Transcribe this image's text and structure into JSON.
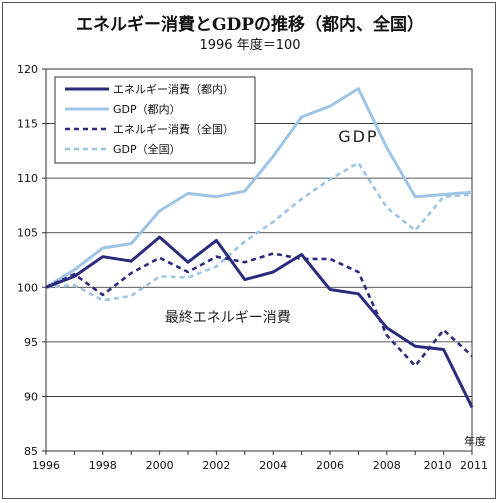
{
  "chart_data": {
    "type": "line",
    "title": "エネルギー消費とGDPの推移（都内、全国）",
    "subtitle": "1996 年度＝100",
    "xlabel": "年度",
    "ylabel": "",
    "ylim": [
      85,
      120
    ],
    "yticks": [
      85,
      90,
      95,
      100,
      105,
      110,
      115,
      120
    ],
    "x": [
      1996,
      1997,
      1998,
      1999,
      2000,
      2001,
      2002,
      2003,
      2004,
      2005,
      2006,
      2007,
      2008,
      2009,
      2010,
      2011
    ],
    "xtick_labels": [
      "1996",
      "1998",
      "2000",
      "2002",
      "2004",
      "2006",
      "2008",
      "2010",
      "2011"
    ],
    "xtick_values": [
      1996,
      1998,
      2000,
      2002,
      2004,
      2006,
      2008,
      2010,
      2011
    ],
    "legend_position": "top-left",
    "grid": "horizontal",
    "series": [
      {
        "name": "エネルギー消費（都内）",
        "color": "#2b2b7e",
        "dash": "solid",
        "values": [
          100,
          101,
          102.8,
          102.4,
          104.6,
          102.3,
          104.3,
          100.7,
          101.4,
          103.0,
          99.8,
          99.4,
          96.3,
          94.6,
          94.3,
          89.0
        ]
      },
      {
        "name": "GDP（都内）",
        "color": "#9ec5e6",
        "dash": "solid",
        "values": [
          100,
          101.6,
          103.6,
          104.0,
          107.0,
          108.6,
          108.3,
          108.8,
          112.0,
          115.6,
          116.6,
          118.2,
          112.8,
          108.3,
          108.5,
          108.7
        ]
      },
      {
        "name": "エネルギー消費（全国）",
        "color": "#2b2b7e",
        "dash": "dashed",
        "values": [
          100,
          101.2,
          99.3,
          101.3,
          102.7,
          101.4,
          102.8,
          102.3,
          103.1,
          102.6,
          102.6,
          101.4,
          95.6,
          92.8,
          96.1,
          93.7
        ]
      },
      {
        "name": "GDP（全国）",
        "color": "#9ec5e6",
        "dash": "dashed",
        "values": [
          100,
          100.2,
          98.8,
          99.2,
          101.0,
          100.9,
          101.9,
          104.2,
          106.0,
          108.1,
          109.9,
          111.4,
          107.3,
          105.2,
          108.3,
          108.5
        ]
      }
    ],
    "annotations": [
      {
        "text": "GDP",
        "x": 2007,
        "y": 113.3
      },
      {
        "text": "最終エネルギー消費",
        "x": 2002.4,
        "y": 96.8
      }
    ]
  }
}
